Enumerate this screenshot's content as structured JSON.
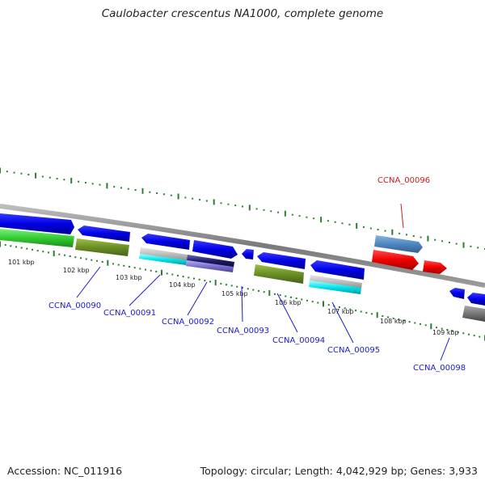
{
  "title": "Caulobacter crescentus NA1000, complete genome",
  "footer": {
    "accession": "Accession: NC_011916",
    "summary": "Topology: circular; Length: 4,042,929 bp; Genes: 3,933"
  },
  "ticks": [
    "101 kbp",
    "102 kbp",
    "103 kbp",
    "104 kbp",
    "105 kbp",
    "106 kbp",
    "107 kbp",
    "108 kbp",
    "109 kbp"
  ],
  "genes": [
    {
      "label": "CCNA_00090",
      "color": "#1a1acc"
    },
    {
      "label": "CCNA_00091",
      "color": "#1a1acc"
    },
    {
      "label": "CCNA_00092",
      "color": "#1a1acc"
    },
    {
      "label": "CCNA_00093",
      "color": "#1a1acc"
    },
    {
      "label": "CCNA_00094",
      "color": "#1a1acc"
    },
    {
      "label": "CCNA_00095",
      "color": "#1a1acc"
    },
    {
      "label": "CCNA_00096",
      "color": "#cc1a1a"
    },
    {
      "label": "CCNA_00098",
      "color": "#1a1acc"
    }
  ],
  "colors": {
    "backbone": "#8c8c8c",
    "tick_green": "#2e7d32",
    "cds_blue": "#0000e6",
    "cds_red": "#ee0000",
    "steel_blue": "#4f86c0",
    "green": "#33cc33",
    "olive": "#6b8e23",
    "cyan": "#00e5ee",
    "navy": "#1a1a66",
    "purple": "#7a6fcf",
    "gray": "#777777"
  }
}
